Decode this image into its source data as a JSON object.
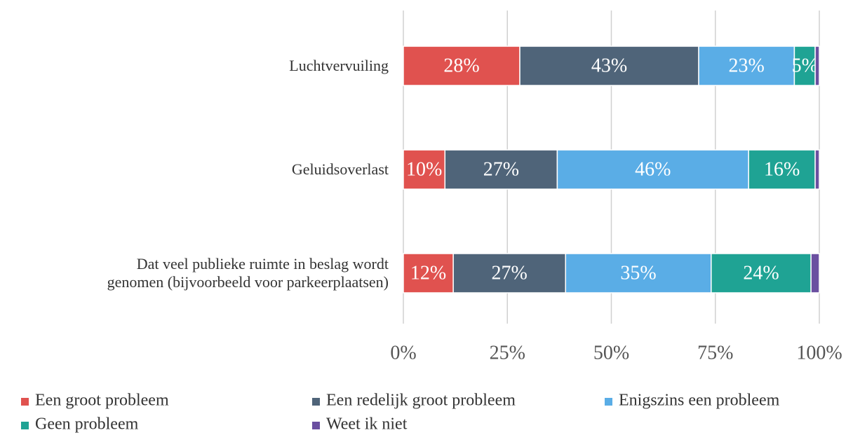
{
  "chart_data": {
    "type": "stacked_barh",
    "categories": [
      "Luchtvervuiling",
      "Geluidsoverlast",
      "Dat veel publieke ruimte in beslag wordt\ngenomen (bijvoorbeeld voor parkeerplaatsen)"
    ],
    "series": [
      {
        "name": "Een groot probleem",
        "color": "#e0524f",
        "values": [
          28,
          10,
          12
        ],
        "value_labels": [
          "28%",
          "10%",
          "12%"
        ]
      },
      {
        "name": "Een redelijk groot probleem",
        "color": "#4f6479",
        "values": [
          43,
          27,
          27
        ],
        "value_labels": [
          "43%",
          "27%",
          "27%"
        ]
      },
      {
        "name": "Enigszins een probleem",
        "color": "#5aade6",
        "values": [
          23,
          46,
          35
        ],
        "value_labels": [
          "23%",
          "46%",
          "35%"
        ]
      },
      {
        "name": "Geen probleem",
        "color": "#1fa394",
        "values": [
          5,
          16,
          24
        ],
        "value_labels": [
          "5%",
          "16%",
          "24%"
        ]
      },
      {
        "name": "Weet ik niet",
        "color": "#6a4fa0",
        "values": [
          1,
          1,
          2
        ]
      }
    ],
    "xlim": [
      0,
      100
    ],
    "xticks": [
      {
        "value": 0,
        "label": "0%"
      },
      {
        "value": 25,
        "label": "25%"
      },
      {
        "value": 50,
        "label": "50%"
      },
      {
        "value": 75,
        "label": "75%"
      },
      {
        "value": 100,
        "label": "100%"
      }
    ],
    "grid": true,
    "legend": "bottom"
  }
}
